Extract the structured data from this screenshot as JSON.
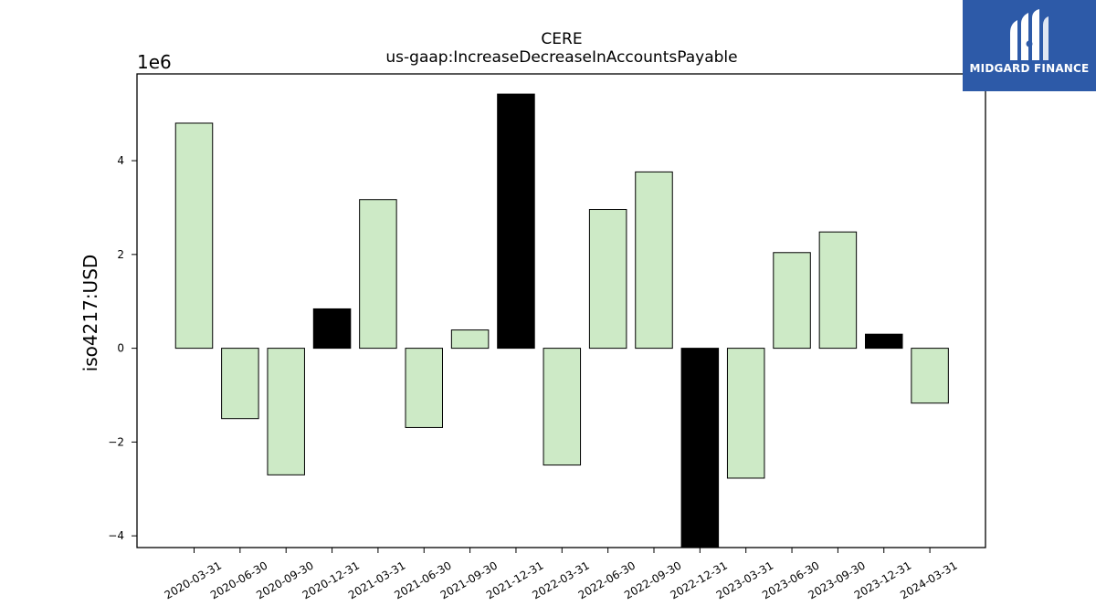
{
  "chart_data": {
    "type": "bar",
    "title": "CERE",
    "subtitle": "us-gaap:IncreaseDecreaseInAccountsPayable",
    "ylabel": "iso4217:USD",
    "xlabel": "",
    "y_scale_label": "1e6",
    "y_multiplier": 1000000,
    "ylim": [
      -4.25,
      5.85
    ],
    "yticks": [
      -4,
      -2,
      0,
      2,
      4
    ],
    "ytick_labels": [
      "−4",
      "−2",
      "0",
      "2",
      "4"
    ],
    "grid": false,
    "categories": [
      "2020-03-31",
      "2020-06-30",
      "2020-09-30",
      "2020-12-31",
      "2021-03-31",
      "2021-06-30",
      "2021-09-30",
      "2021-12-31",
      "2022-03-31",
      "2022-06-30",
      "2022-09-30",
      "2022-12-31",
      "2023-03-31",
      "2023-06-30",
      "2023-09-30",
      "2023-12-31",
      "2024-03-31"
    ],
    "values": [
      4800000,
      -1500000,
      -2700000,
      840000,
      3170000,
      -1690000,
      390000,
      5420000,
      -2490000,
      2960000,
      3760000,
      -4300000,
      -2770000,
      2040000,
      2480000,
      300000,
      -1170000
    ],
    "colors": {
      "quarterly": "#cdeac6",
      "year_end": "#000000",
      "edge": "#000000"
    },
    "bar_colors": [
      "quarterly",
      "quarterly",
      "quarterly",
      "year_end",
      "quarterly",
      "quarterly",
      "quarterly",
      "year_end",
      "quarterly",
      "quarterly",
      "quarterly",
      "year_end",
      "quarterly",
      "quarterly",
      "quarterly",
      "year_end",
      "quarterly"
    ]
  },
  "logo": {
    "text": "MIDGARD FINANCE",
    "background": "#2d5aa8"
  }
}
